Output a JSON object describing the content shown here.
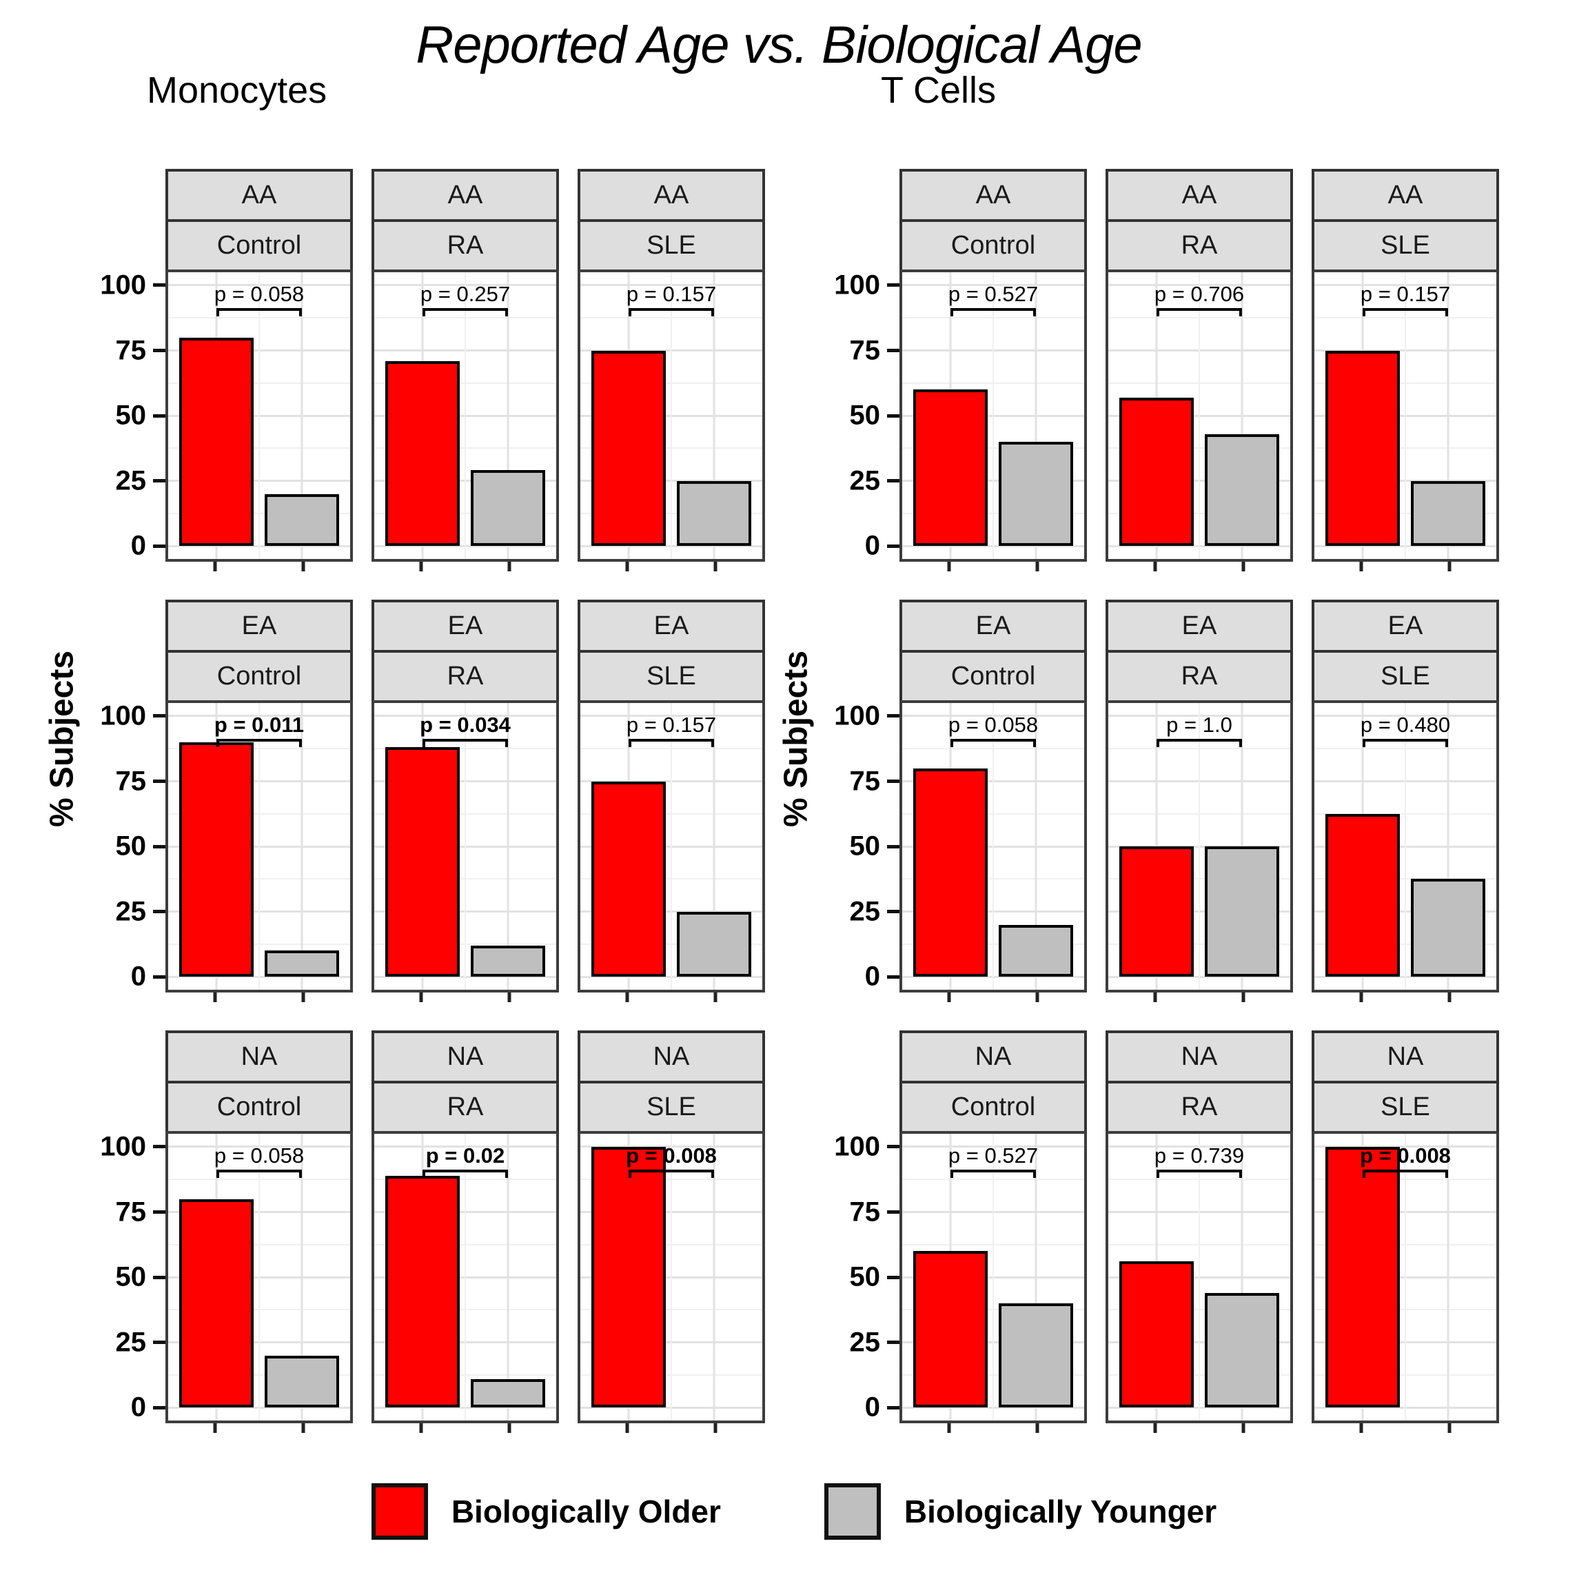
{
  "title": "Reported Age vs. Biological Age",
  "y_axis": {
    "label": "% Subjects",
    "ticks": [
      100,
      75,
      50,
      25,
      0
    ]
  },
  "legend": {
    "items": [
      {
        "label": "Biologically Older",
        "color": "#ff0000"
      },
      {
        "label": "Biologically Younger",
        "color": "#bfbfbf"
      }
    ]
  },
  "chart_data": {
    "type": "bar",
    "series": [
      "Biologically Older",
      "Biologically Younger"
    ],
    "ylim": [
      0,
      100
    ],
    "grid": "on",
    "legend_position": "bottom",
    "facet_rows": [
      "AA",
      "EA",
      "NA"
    ],
    "facet_cols": [
      "Control",
      "RA",
      "SLE"
    ],
    "groups": [
      {
        "name": "Monocytes",
        "facets": [
          {
            "race": "AA",
            "cohort": "Control",
            "p_label": "p = 0.058",
            "significant": false,
            "older": 80,
            "younger": 20
          },
          {
            "race": "AA",
            "cohort": "RA",
            "p_label": "p = 0.257",
            "significant": false,
            "older": 71,
            "younger": 29
          },
          {
            "race": "AA",
            "cohort": "SLE",
            "p_label": "p = 0.157",
            "significant": false,
            "older": 75,
            "younger": 25
          },
          {
            "race": "EA",
            "cohort": "Control",
            "p_label": "p = 0.011",
            "significant": true,
            "older": 90,
            "younger": 10
          },
          {
            "race": "EA",
            "cohort": "RA",
            "p_label": "p = 0.034",
            "significant": true,
            "older": 88,
            "younger": 12
          },
          {
            "race": "EA",
            "cohort": "SLE",
            "p_label": "p = 0.157",
            "significant": false,
            "older": 75,
            "younger": 25
          },
          {
            "race": "NA",
            "cohort": "Control",
            "p_label": "p = 0.058",
            "significant": false,
            "older": 80,
            "younger": 20
          },
          {
            "race": "NA",
            "cohort": "RA",
            "p_label": "p = 0.02",
            "significant": true,
            "older": 89,
            "younger": 11
          },
          {
            "race": "NA",
            "cohort": "SLE",
            "p_label": "p = 0.008",
            "significant": true,
            "older": 100,
            "younger": 0
          }
        ]
      },
      {
        "name": "T Cells",
        "facets": [
          {
            "race": "AA",
            "cohort": "Control",
            "p_label": "p = 0.527",
            "significant": false,
            "older": 60,
            "younger": 40
          },
          {
            "race": "AA",
            "cohort": "RA",
            "p_label": "p = 0.706",
            "significant": false,
            "older": 57,
            "younger": 43
          },
          {
            "race": "AA",
            "cohort": "SLE",
            "p_label": "p = 0.157",
            "significant": false,
            "older": 75,
            "younger": 25
          },
          {
            "race": "EA",
            "cohort": "Control",
            "p_label": "p = 0.058",
            "significant": false,
            "older": 80,
            "younger": 20
          },
          {
            "race": "EA",
            "cohort": "RA",
            "p_label": "p = 1.0",
            "significant": false,
            "older": 50,
            "younger": 50
          },
          {
            "race": "EA",
            "cohort": "SLE",
            "p_label": "p = 0.480",
            "significant": false,
            "older": 62.5,
            "younger": 37.5
          },
          {
            "race": "NA",
            "cohort": "Control",
            "p_label": "p = 0.527",
            "significant": false,
            "older": 60,
            "younger": 40
          },
          {
            "race": "NA",
            "cohort": "RA",
            "p_label": "p = 0.739",
            "significant": false,
            "older": 56,
            "younger": 44
          },
          {
            "race": "NA",
            "cohort": "SLE",
            "p_label": "p = 0.008",
            "significant": true,
            "older": 100,
            "younger": 0
          }
        ]
      }
    ]
  }
}
